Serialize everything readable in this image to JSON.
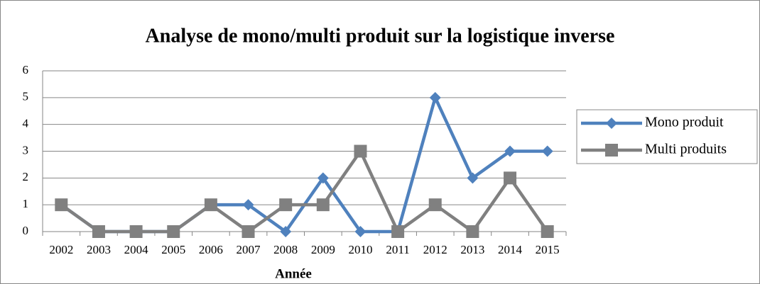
{
  "chart_data": {
    "type": "line",
    "title": "Analyse de mono/multi produit sur la logistique inverse",
    "x_label": "Année",
    "categories": [
      "2002",
      "2003",
      "2004",
      "2005",
      "2006",
      "2007",
      "2008",
      "2009",
      "2010",
      "2011",
      "2012",
      "2013",
      "2014",
      "2015"
    ],
    "series": [
      {
        "name": "Mono produit",
        "color": "#4f81bd",
        "marker": "diamond",
        "values": [
          1,
          0,
          0,
          0,
          1,
          1,
          0,
          2,
          0,
          0,
          5,
          2,
          3,
          3
        ]
      },
      {
        "name": "Multi produits",
        "color": "#808080",
        "marker": "square",
        "values": [
          1,
          0,
          0,
          0,
          1,
          0,
          1,
          1,
          3,
          0,
          1,
          0,
          2,
          0
        ]
      }
    ],
    "ylim": [
      0,
      6
    ],
    "yticks": [
      0,
      1,
      2,
      3,
      4,
      5,
      6
    ],
    "grid": true,
    "legend": "right"
  }
}
